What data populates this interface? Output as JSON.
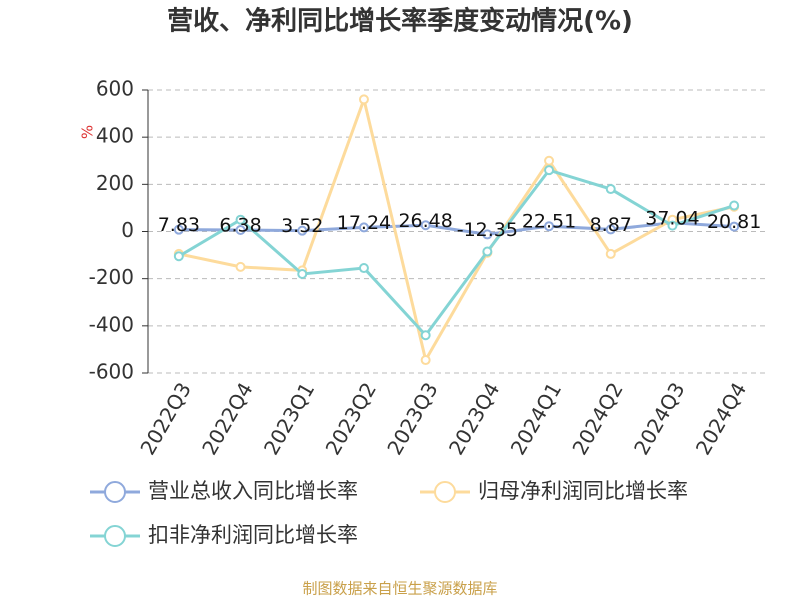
{
  "chart_data": {
    "type": "line",
    "title": "营收、净利同比增长率季度变动情况(%)",
    "y_label": "%",
    "categories": [
      "2022Q3",
      "2022Q4",
      "2023Q1",
      "2023Q2",
      "2023Q3",
      "2023Q4",
      "2024Q1",
      "2024Q2",
      "2024Q3",
      "2024Q4"
    ],
    "series": [
      {
        "name": "营业总收入同比增长率",
        "color": "#8fa9dc",
        "values": [
          7.83,
          6.38,
          3.52,
          17.24,
          26.48,
          -12.35,
          22.51,
          8.87,
          37.04,
          20.81
        ],
        "show_labels": true
      },
      {
        "name": "归母净利润同比增长率",
        "color": "#fddb9c",
        "values": [
          -95,
          -150,
          -165,
          560,
          -545,
          -90,
          300,
          -95,
          50,
          105
        ]
      },
      {
        "name": "扣非净利润同比增长率",
        "color": "#84d4d4",
        "values": [
          -105,
          50,
          -180,
          -155,
          -440,
          -85,
          260,
          180,
          25,
          110
        ]
      }
    ],
    "ylim": [
      -600,
      600
    ],
    "yticks": [
      -600,
      -400,
      -200,
      0,
      200,
      400,
      600
    ],
    "grid": true,
    "source": "制图数据来自恒生聚源数据库"
  }
}
